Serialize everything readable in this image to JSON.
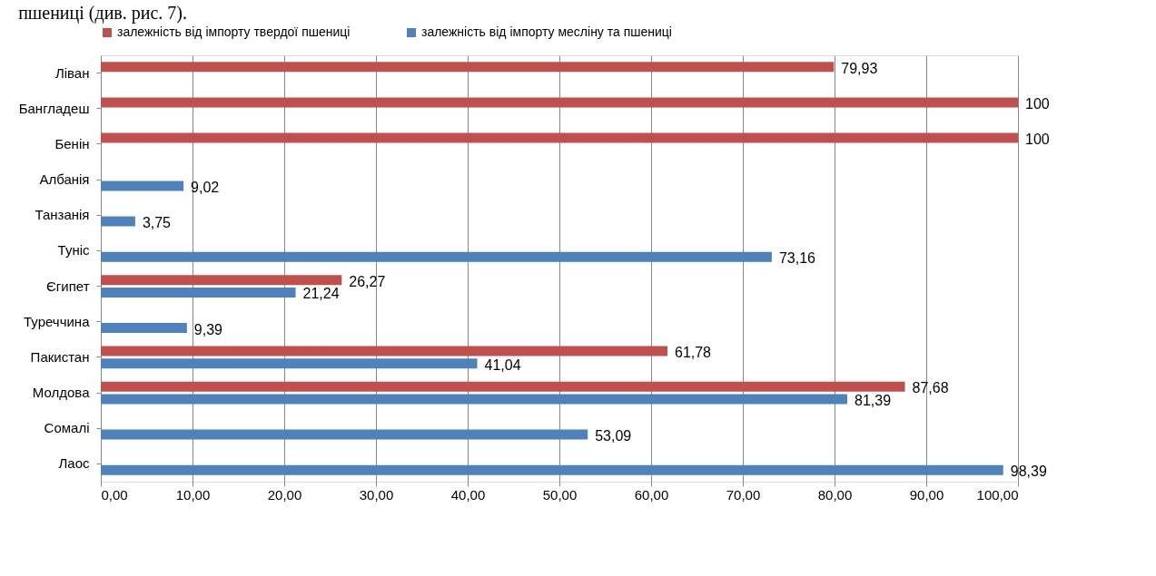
{
  "chart_data": {
    "type": "bar",
    "orientation": "horizontal",
    "annotations": [
      "пшениці (див. рис. 7)."
    ],
    "categories": [
      "Ліван",
      "Бангладеш",
      "Бенін",
      "Албанія",
      "Танзанія",
      "Туніс",
      "Єгипет",
      "Туреччина",
      "Пакистан",
      "Молдова",
      "Сомалі",
      "Лаос"
    ],
    "series": [
      {
        "name": "залежність від імпорту твердої пшениці",
        "color": "#c0504d",
        "values": [
          79.93,
          100,
          100,
          null,
          null,
          null,
          26.27,
          null,
          61.78,
          87.68,
          null,
          null
        ],
        "value_labels": [
          "79,93",
          "100",
          "100",
          null,
          null,
          null,
          "26,27",
          null,
          "61,78",
          "87,68",
          null,
          null
        ]
      },
      {
        "name": "залежність від імпорту месліну та пшениці",
        "color": "#4f81bd",
        "values": [
          null,
          null,
          null,
          9.02,
          3.75,
          73.16,
          21.24,
          9.39,
          41.04,
          81.39,
          53.09,
          98.39
        ],
        "value_labels": [
          null,
          null,
          null,
          "9,02",
          "3,75",
          "73,16",
          "21,24",
          "9,39",
          "41,04",
          "81,39",
          "53,09",
          "98,39"
        ]
      }
    ],
    "xlim": [
      0,
      100
    ],
    "xticks": [
      {
        "value": 0,
        "label": "0,00"
      },
      {
        "value": 10,
        "label": "10,00"
      },
      {
        "value": 20,
        "label": "20,00"
      },
      {
        "value": 30,
        "label": "30,00"
      },
      {
        "value": 40,
        "label": "40,00"
      },
      {
        "value": 50,
        "label": "50,00"
      },
      {
        "value": 60,
        "label": "60,00"
      },
      {
        "value": 70,
        "label": "70,00"
      },
      {
        "value": 80,
        "label": "80,00"
      },
      {
        "value": 90,
        "label": "90,00"
      },
      {
        "value": 100,
        "label": "100,00"
      }
    ],
    "grid": "x",
    "legend": "top"
  }
}
